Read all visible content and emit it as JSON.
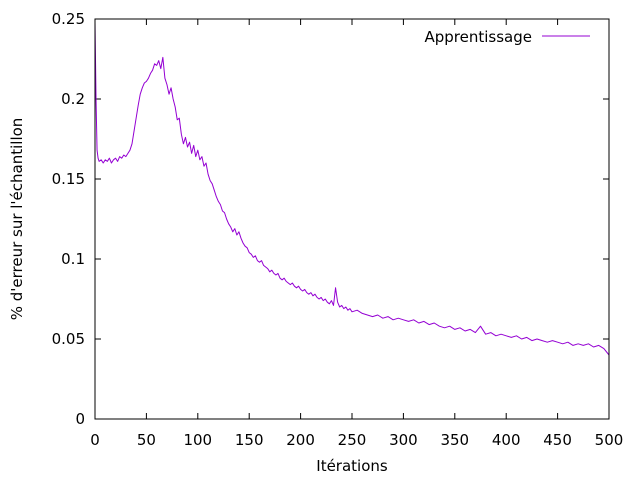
{
  "chart_data": {
    "type": "line",
    "xlabel": "Itérations",
    "ylabel": "% d'erreur sur l'échantillon",
    "xlim": [
      0,
      500
    ],
    "ylim": [
      0,
      0.25
    ],
    "x_ticks": [
      0,
      50,
      100,
      150,
      200,
      250,
      300,
      350,
      400,
      450,
      500
    ],
    "x_tick_labels": [
      "0",
      "50",
      "100",
      "150",
      "200",
      "250",
      "300",
      "350",
      "400",
      "450",
      "500"
    ],
    "y_ticks": [
      0,
      0.05,
      0.1,
      0.15,
      0.2,
      0.25
    ],
    "y_tick_labels": [
      "0",
      "0.05",
      "0.1",
      "0.15",
      "0.2",
      "0.25"
    ],
    "grid": false,
    "legend_position": "top-right",
    "series": [
      {
        "name": "Apprentissage",
        "color": "#9400d3",
        "points": [
          [
            0,
            0.248
          ],
          [
            1,
            0.2
          ],
          [
            2,
            0.168
          ],
          [
            3,
            0.163
          ],
          [
            4,
            0.161
          ],
          [
            6,
            0.162
          ],
          [
            8,
            0.16
          ],
          [
            10,
            0.162
          ],
          [
            12,
            0.161
          ],
          [
            14,
            0.163
          ],
          [
            16,
            0.16
          ],
          [
            18,
            0.162
          ],
          [
            20,
            0.163
          ],
          [
            22,
            0.161
          ],
          [
            24,
            0.164
          ],
          [
            26,
            0.163
          ],
          [
            28,
            0.165
          ],
          [
            30,
            0.164
          ],
          [
            32,
            0.166
          ],
          [
            34,
            0.168
          ],
          [
            36,
            0.172
          ],
          [
            38,
            0.18
          ],
          [
            40,
            0.188
          ],
          [
            42,
            0.196
          ],
          [
            44,
            0.203
          ],
          [
            46,
            0.207
          ],
          [
            48,
            0.21
          ],
          [
            50,
            0.211
          ],
          [
            52,
            0.213
          ],
          [
            54,
            0.216
          ],
          [
            56,
            0.218
          ],
          [
            58,
            0.222
          ],
          [
            60,
            0.221
          ],
          [
            62,
            0.224
          ],
          [
            64,
            0.219
          ],
          [
            66,
            0.226
          ],
          [
            68,
            0.213
          ],
          [
            70,
            0.209
          ],
          [
            72,
            0.203
          ],
          [
            74,
            0.207
          ],
          [
            76,
            0.2
          ],
          [
            78,
            0.195
          ],
          [
            80,
            0.187
          ],
          [
            82,
            0.188
          ],
          [
            84,
            0.178
          ],
          [
            86,
            0.172
          ],
          [
            88,
            0.176
          ],
          [
            90,
            0.17
          ],
          [
            92,
            0.173
          ],
          [
            94,
            0.166
          ],
          [
            96,
            0.171
          ],
          [
            98,
            0.164
          ],
          [
            100,
            0.168
          ],
          [
            102,
            0.162
          ],
          [
            104,
            0.164
          ],
          [
            106,
            0.158
          ],
          [
            108,
            0.16
          ],
          [
            110,
            0.153
          ],
          [
            112,
            0.149
          ],
          [
            114,
            0.147
          ],
          [
            116,
            0.143
          ],
          [
            118,
            0.139
          ],
          [
            120,
            0.136
          ],
          [
            122,
            0.134
          ],
          [
            124,
            0.13
          ],
          [
            126,
            0.129
          ],
          [
            128,
            0.125
          ],
          [
            130,
            0.122
          ],
          [
            132,
            0.12
          ],
          [
            134,
            0.117
          ],
          [
            136,
            0.119
          ],
          [
            138,
            0.115
          ],
          [
            140,
            0.117
          ],
          [
            142,
            0.113
          ],
          [
            144,
            0.11
          ],
          [
            146,
            0.108
          ],
          [
            148,
            0.107
          ],
          [
            150,
            0.104
          ],
          [
            152,
            0.103
          ],
          [
            154,
            0.101
          ],
          [
            156,
            0.102
          ],
          [
            158,
            0.099
          ],
          [
            160,
            0.098
          ],
          [
            162,
            0.099
          ],
          [
            164,
            0.096
          ],
          [
            166,
            0.095
          ],
          [
            168,
            0.094
          ],
          [
            170,
            0.092
          ],
          [
            172,
            0.093
          ],
          [
            174,
            0.091
          ],
          [
            176,
            0.09
          ],
          [
            178,
            0.091
          ],
          [
            180,
            0.088
          ],
          [
            182,
            0.087
          ],
          [
            184,
            0.088
          ],
          [
            186,
            0.086
          ],
          [
            188,
            0.085
          ],
          [
            190,
            0.084
          ],
          [
            192,
            0.085
          ],
          [
            194,
            0.083
          ],
          [
            196,
            0.082
          ],
          [
            198,
            0.083
          ],
          [
            200,
            0.081
          ],
          [
            202,
            0.08
          ],
          [
            204,
            0.081
          ],
          [
            206,
            0.079
          ],
          [
            208,
            0.078
          ],
          [
            210,
            0.079
          ],
          [
            212,
            0.077
          ],
          [
            214,
            0.078
          ],
          [
            216,
            0.076
          ],
          [
            218,
            0.075
          ],
          [
            220,
            0.076
          ],
          [
            222,
            0.074
          ],
          [
            224,
            0.075
          ],
          [
            226,
            0.073
          ],
          [
            228,
            0.072
          ],
          [
            230,
            0.074
          ],
          [
            232,
            0.071
          ],
          [
            234,
            0.082
          ],
          [
            236,
            0.073
          ],
          [
            238,
            0.07
          ],
          [
            240,
            0.071
          ],
          [
            242,
            0.069
          ],
          [
            244,
            0.07
          ],
          [
            246,
            0.068
          ],
          [
            248,
            0.069
          ],
          [
            250,
            0.067
          ],
          [
            255,
            0.068
          ],
          [
            260,
            0.066
          ],
          [
            265,
            0.065
          ],
          [
            270,
            0.064
          ],
          [
            275,
            0.065
          ],
          [
            280,
            0.063
          ],
          [
            285,
            0.064
          ],
          [
            290,
            0.062
          ],
          [
            295,
            0.063
          ],
          [
            300,
            0.062
          ],
          [
            305,
            0.061
          ],
          [
            310,
            0.062
          ],
          [
            315,
            0.06
          ],
          [
            320,
            0.061
          ],
          [
            325,
            0.059
          ],
          [
            330,
            0.06
          ],
          [
            335,
            0.058
          ],
          [
            340,
            0.057
          ],
          [
            345,
            0.058
          ],
          [
            350,
            0.056
          ],
          [
            355,
            0.057
          ],
          [
            360,
            0.055
          ],
          [
            365,
            0.056
          ],
          [
            370,
            0.054
          ],
          [
            375,
            0.058
          ],
          [
            380,
            0.053
          ],
          [
            385,
            0.054
          ],
          [
            390,
            0.052
          ],
          [
            395,
            0.053
          ],
          [
            400,
            0.052
          ],
          [
            405,
            0.051
          ],
          [
            410,
            0.052
          ],
          [
            415,
            0.05
          ],
          [
            420,
            0.051
          ],
          [
            425,
            0.049
          ],
          [
            430,
            0.05
          ],
          [
            435,
            0.049
          ],
          [
            440,
            0.048
          ],
          [
            445,
            0.049
          ],
          [
            450,
            0.048
          ],
          [
            455,
            0.047
          ],
          [
            460,
            0.048
          ],
          [
            465,
            0.046
          ],
          [
            470,
            0.047
          ],
          [
            475,
            0.046
          ],
          [
            480,
            0.047
          ],
          [
            485,
            0.045
          ],
          [
            490,
            0.046
          ],
          [
            495,
            0.044
          ],
          [
            500,
            0.04
          ]
        ]
      }
    ]
  }
}
